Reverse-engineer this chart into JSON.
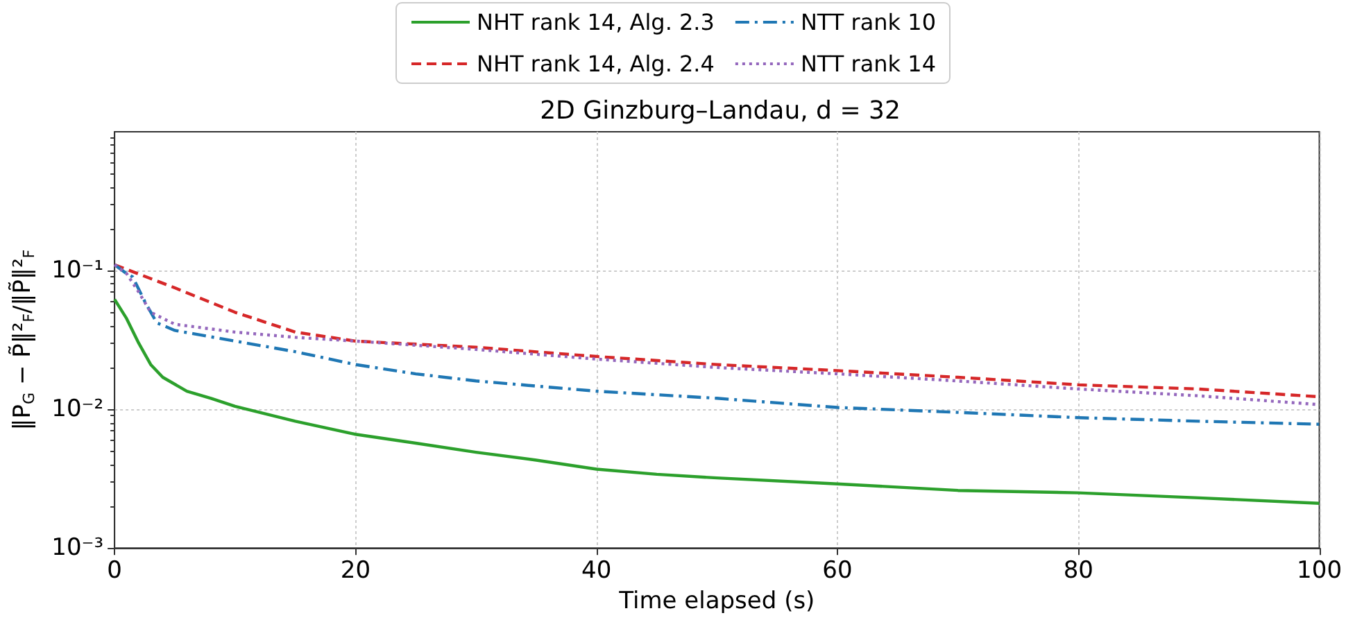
{
  "chart_data": {
    "type": "line",
    "title": "2D Ginzburg–Landau, d = 32",
    "xlabel": "Time elapsed (s)",
    "ylabel": "‖P$_{G}$ − P̃‖²$_{F}$/‖P̃‖²$_{F}$",
    "xlim": [
      0,
      100
    ],
    "xticks": [
      0,
      20,
      40,
      60,
      80,
      100
    ],
    "ylim": [
      0.001,
      1
    ],
    "yticks": [
      {
        "value": 0.001,
        "label": "10⁻³"
      },
      {
        "value": 0.01,
        "label": "10⁻²"
      },
      {
        "value": 0.1,
        "label": "10⁻¹"
      }
    ],
    "log": "y",
    "grid": true,
    "legend": "top",
    "marker": "none",
    "series": [
      {
        "name": "NHT rank 14, Alg. 2.3",
        "color": "#2ca02c",
        "line_style": "solid",
        "x": [
          0,
          1,
          2,
          3,
          4,
          6,
          8,
          10,
          15,
          20,
          25,
          30,
          35,
          40,
          45,
          50,
          60,
          70,
          80,
          90,
          100
        ],
        "values": [
          0.062,
          0.045,
          0.03,
          0.021,
          0.017,
          0.0135,
          0.012,
          0.0105,
          0.0082,
          0.0066,
          0.0057,
          0.0049,
          0.0043,
          0.0037,
          0.0034,
          0.0032,
          0.0029,
          0.0026,
          0.0025,
          0.0023,
          0.0021
        ]
      },
      {
        "name": "NHT rank 14, Alg. 2.4",
        "color": "#d62728",
        "line_style": "dashed",
        "x": [
          0,
          5,
          10,
          15,
          20,
          30,
          40,
          50,
          60,
          70,
          80,
          90,
          100
        ],
        "values": [
          0.11,
          0.075,
          0.05,
          0.036,
          0.031,
          0.028,
          0.024,
          0.021,
          0.019,
          0.017,
          0.015,
          0.014,
          0.0123
        ]
      },
      {
        "name": "NTT rank 10",
        "color": "#1f77b4",
        "line_style": "dashdot",
        "x": [
          0,
          1,
          1.5,
          2.5,
          3.5,
          5,
          10,
          15,
          20,
          25,
          30,
          40,
          50,
          60,
          70,
          80,
          90,
          100
        ],
        "values": [
          0.11,
          0.095,
          0.09,
          0.06,
          0.042,
          0.037,
          0.031,
          0.026,
          0.021,
          0.018,
          0.016,
          0.0135,
          0.012,
          0.0103,
          0.0095,
          0.0087,
          0.0082,
          0.0078
        ]
      },
      {
        "name": "NTT rank 14",
        "color": "#9467bd",
        "line_style": "dotted",
        "x": [
          0,
          1,
          2,
          3,
          5,
          10,
          15,
          20,
          30,
          40,
          50,
          60,
          70,
          80,
          90,
          100
        ],
        "values": [
          0.11,
          0.095,
          0.07,
          0.05,
          0.041,
          0.036,
          0.033,
          0.031,
          0.027,
          0.023,
          0.02,
          0.018,
          0.016,
          0.014,
          0.0125,
          0.0108
        ]
      }
    ]
  }
}
